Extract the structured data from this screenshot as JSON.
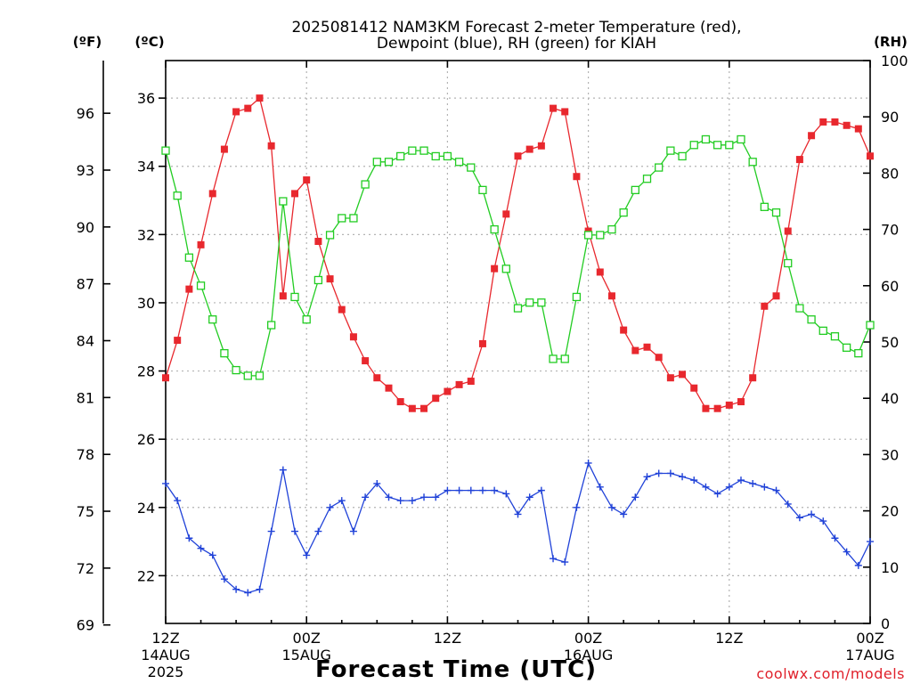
{
  "chart_data": {
    "type": "line",
    "title_line1": "2025081412 NAM3KM Forecast 2-meter Temperature (red),",
    "title_line2": "Dewpoint (blue), RH (green) for KIAH",
    "xlabel": "Forecast Time (UTC)",
    "credit": "coolwx.com/models",
    "left_outer_unit": "(ºF)",
    "left_inner_unit": "(ºC)",
    "right_unit": "(RH)",
    "ylim_c": [
      20.6,
      37.1
    ],
    "ylim_rh": [
      0,
      100
    ],
    "xlim_hours": [
      0,
      60
    ],
    "celsius_ticks": [
      22,
      24,
      26,
      28,
      30,
      32,
      34,
      36
    ],
    "fahrenheit_ticks": [
      69,
      72,
      75,
      78,
      81,
      84,
      87,
      90,
      93,
      96
    ],
    "rh_ticks": [
      0,
      10,
      20,
      30,
      40,
      50,
      60,
      70,
      80,
      90,
      100
    ],
    "x_ticks": [
      {
        "hour": 0,
        "label": "12Z",
        "date": "14AUG",
        "year": "2025"
      },
      {
        "hour": 12,
        "label": "00Z",
        "date": "15AUG",
        "year": ""
      },
      {
        "hour": 24,
        "label": "12Z",
        "date": "",
        "year": ""
      },
      {
        "hour": 36,
        "label": "00Z",
        "date": "16AUG",
        "year": ""
      },
      {
        "hour": 48,
        "label": "12Z",
        "date": "",
        "year": ""
      },
      {
        "hour": 60,
        "label": "00Z",
        "date": "17AUG",
        "year": ""
      }
    ],
    "x_hours": [
      0,
      1,
      2,
      3,
      4,
      5,
      6,
      7,
      8,
      9,
      10,
      11,
      12,
      13,
      14,
      15,
      16,
      17,
      18,
      19,
      20,
      21,
      22,
      23,
      24,
      25,
      26,
      27,
      28,
      29,
      30,
      31,
      32,
      33,
      34,
      35,
      36,
      37,
      38,
      39,
      40,
      41,
      42,
      43,
      44,
      45,
      46,
      47,
      48,
      49,
      50,
      51,
      52,
      53,
      54,
      55,
      56,
      57,
      58,
      59,
      60
    ],
    "series": [
      {
        "name": "2-meter Temperature",
        "color": "#e8282e",
        "unit": "C",
        "marker": "filled-square",
        "values": [
          27.8,
          28.9,
          30.4,
          31.7,
          33.2,
          34.5,
          35.6,
          35.7,
          36.0,
          34.6,
          30.2,
          33.2,
          33.6,
          31.8,
          30.7,
          29.8,
          29.0,
          28.3,
          27.8,
          27.5,
          27.1,
          26.9,
          26.9,
          27.2,
          27.4,
          27.6,
          27.7,
          28.8,
          31.0,
          32.6,
          34.3,
          34.5,
          34.6,
          35.7,
          35.6,
          33.7,
          32.1,
          30.9,
          30.2,
          29.2,
          28.6,
          28.7,
          28.4,
          27.8,
          27.9,
          27.5,
          26.9,
          26.9,
          27.0,
          27.1,
          27.8,
          29.9,
          30.2,
          32.1,
          34.2,
          34.9,
          35.3,
          35.3,
          35.2,
          35.1,
          34.3
        ]
      },
      {
        "name": "Dewpoint",
        "color": "#2042d8",
        "unit": "C",
        "marker": "plus",
        "values": [
          24.7,
          24.2,
          23.1,
          22.8,
          22.6,
          21.9,
          21.6,
          21.5,
          21.6,
          23.3,
          25.1,
          23.3,
          22.6,
          23.3,
          24.0,
          24.2,
          23.3,
          24.3,
          24.7,
          24.3,
          24.2,
          24.2,
          24.3,
          24.3,
          24.5,
          24.5,
          24.5,
          24.5,
          24.5,
          24.4,
          23.8,
          24.3,
          24.5,
          22.5,
          22.4,
          24.0,
          25.3,
          24.6,
          24.0,
          23.8,
          24.3,
          24.9,
          25.0,
          25.0,
          24.9,
          24.8,
          24.6,
          24.4,
          24.6,
          24.8,
          24.7,
          24.6,
          24.5,
          24.1,
          23.7,
          23.8,
          23.6,
          23.1,
          22.7,
          22.3,
          23.0
        ]
      },
      {
        "name": "RH",
        "color": "#22cc22",
        "unit": "RH",
        "marker": "open-square",
        "values": [
          84,
          76,
          65,
          60,
          54,
          48,
          45,
          44,
          44,
          53,
          75,
          58,
          54,
          61,
          69,
          72,
          72,
          78,
          82,
          82,
          83,
          84,
          84,
          83,
          83,
          82,
          81,
          77,
          70,
          63,
          56,
          57,
          57,
          47,
          47,
          58,
          69,
          69,
          70,
          73,
          77,
          79,
          81,
          84,
          83,
          85,
          86,
          85,
          85,
          86,
          82,
          74,
          73,
          64,
          56,
          54,
          52,
          51,
          49,
          48,
          53
        ]
      }
    ]
  }
}
